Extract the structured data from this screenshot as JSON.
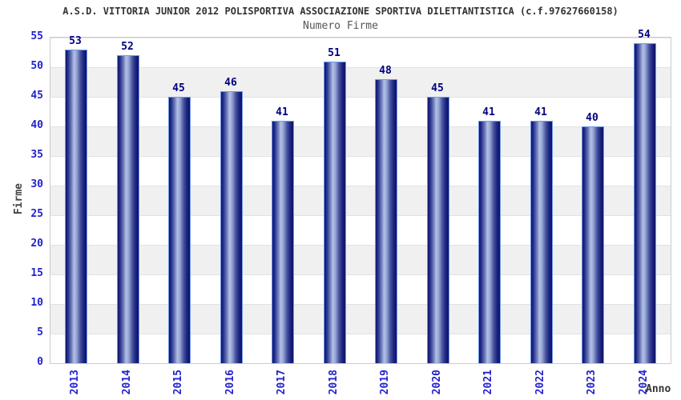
{
  "header": {
    "title": "A.S.D. VITTORIA JUNIOR 2012 POLISPORTIVA ASSOCIAZIONE SPORTIVA DILETTANTISTICA (c.f.97627660158)",
    "subtitle": "Numero Firme"
  },
  "chart_data": {
    "type": "bar",
    "title": "Numero Firme",
    "categories": [
      "2013",
      "2014",
      "2015",
      "2016",
      "2017",
      "2018",
      "2019",
      "2020",
      "2021",
      "2022",
      "2023",
      "2024"
    ],
    "values": [
      53,
      52,
      45,
      46,
      41,
      51,
      48,
      45,
      41,
      41,
      40,
      54
    ],
    "xlabel": "Anno",
    "ylabel": "Firme",
    "ylim": [
      0,
      55
    ],
    "ytick_step": 5,
    "yticks": [
      0,
      5,
      10,
      15,
      20,
      25,
      30,
      35,
      40,
      45,
      50,
      55
    ],
    "grid": "alternating-horizontal-bands",
    "legend": "none",
    "colors": {
      "bar_edge_dark": "#10106a",
      "bar_mid_dark": "#2a3690",
      "bar_highlight": "#b4c0e6",
      "bar_border": "#6b9ae8",
      "value_label": "#000080",
      "tick_label_blue": "#2222cc",
      "title_text": "#333333",
      "subtitle_text": "#555555",
      "axis_title_text": "#444444",
      "band_white": "#ffffff",
      "band_gray": "#f0f0f0",
      "band_line": "#e2e2e2",
      "plot_border": "#cccccc"
    }
  }
}
